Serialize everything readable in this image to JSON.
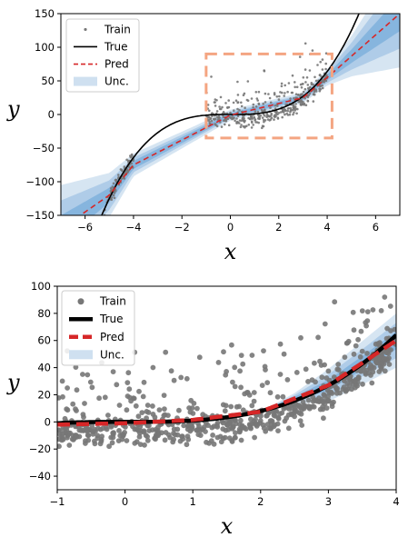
{
  "chart_data": [
    {
      "type": "scatter",
      "xlabel": "x",
      "ylabel": "y",
      "xlim": [
        -7,
        7
      ],
      "ylim": [
        -150,
        150
      ],
      "xticks": [
        -6,
        -4,
        -2,
        0,
        2,
        4,
        6
      ],
      "yticks": [
        -150,
        -100,
        -50,
        0,
        50,
        100,
        150
      ],
      "legend_position": "top-left",
      "legend": [
        "Train",
        "True",
        "Pred",
        "Unc."
      ],
      "true_function": "y = x^3",
      "train_clusters": [
        {
          "x_range": [
            -5.2,
            -4.0
          ],
          "note": "points near y = x^3 with noise"
        },
        {
          "x_range": [
            -1.0,
            4.0
          ],
          "note": "points spread above y = x^3"
        }
      ],
      "pred_line": {
        "x": [
          -7,
          -5,
          -4,
          0,
          3,
          4,
          7
        ],
        "y": [
          -170,
          -120,
          -75,
          -1,
          25,
          55,
          150
        ]
      },
      "uncertainty_halfwidths": [
        {
          "x": [
            -7,
            -5,
            -4,
            0,
            3,
            4,
            5,
            7
          ],
          "hw": [
            65,
            33,
            17,
            8,
            8,
            12,
            30,
            80
          ]
        },
        {
          "x": [
            -7,
            -5,
            -4,
            0,
            3,
            4,
            5,
            7
          ],
          "hw": [
            42,
            22,
            11,
            5,
            5,
            8,
            20,
            52
          ]
        },
        {
          "x": [
            -7,
            -5,
            -4,
            0,
            3,
            4,
            5,
            7
          ],
          "hw": [
            20,
            11,
            6,
            3,
            3,
            4,
            10,
            26
          ]
        }
      ],
      "highlight_box": {
        "x": [
          -1,
          4.2
        ],
        "y": [
          -35,
          90
        ],
        "color": "#f4a582",
        "style": "dashed"
      },
      "colors": {
        "train": "#777777",
        "true": "#000000",
        "pred": "#d62728",
        "unc": "#4a90c8",
        "box": "#f4a582"
      }
    },
    {
      "type": "scatter",
      "xlabel": "x",
      "ylabel": "y",
      "xlim": [
        -1,
        4
      ],
      "ylim": [
        -50,
        100
      ],
      "xticks": [
        -1,
        0,
        1,
        2,
        3,
        4
      ],
      "yticks": [
        -40,
        -20,
        0,
        20,
        40,
        60,
        80,
        100
      ],
      "legend_position": "top-left",
      "legend": [
        "Train",
        "True",
        "Pred",
        "Unc."
      ],
      "true_function": "y = x^3",
      "train_cluster": {
        "x_range": [
          -1.0,
          4.0
        ],
        "note": "dense band near y = x^3 with many points above"
      },
      "pred_line": {
        "x": [
          -1,
          0,
          1,
          2,
          3,
          4
        ],
        "y": [
          -2,
          -1,
          1.5,
          7.5,
          27,
          60
        ]
      },
      "uncertainty_halfwidths": [
        {
          "x": [
            -1,
            2,
            2.5,
            3,
            3.5,
            4
          ],
          "hw": [
            0,
            0,
            4,
            12,
            16,
            20
          ]
        },
        {
          "x": [
            -1,
            2,
            2.5,
            3,
            3.5,
            4
          ],
          "hw": [
            0,
            0,
            2.5,
            8,
            10,
            13
          ]
        },
        {
          "x": [
            -1,
            2,
            2.5,
            3,
            3.5,
            4
          ],
          "hw": [
            0,
            0,
            1.2,
            4,
            5,
            6.5
          ]
        }
      ],
      "colors": {
        "train": "#777777",
        "true": "#000000",
        "pred": "#d62728",
        "unc": "#4a90c8"
      }
    }
  ]
}
